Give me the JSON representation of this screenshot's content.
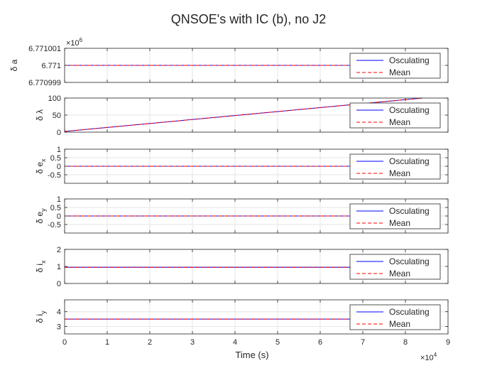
{
  "figure": {
    "title": "QNSOE's with IC (b), no J2",
    "xlabel": "Time (s)",
    "x_exponent": "10",
    "x_exponent_power": "4"
  },
  "colors": {
    "osculating": "#0000ff",
    "mean": "#ff0000",
    "axes": "#262626",
    "grid": "#e6e6e6"
  },
  "legend": {
    "placement": "top-right",
    "entries": [
      "Osculating",
      "Mean"
    ]
  },
  "chart_data": [
    {
      "type": "line",
      "ylabel": "δ a",
      "exponent": "10",
      "exponent_power": "6",
      "xlim": [
        0,
        90000
      ],
      "ylim": [
        6770999,
        6771001
      ],
      "yticks": [
        6770999,
        6771000,
        6771001
      ],
      "ytick_labels": [
        "6.770999",
        "6.771",
        "6.771001"
      ],
      "xticks": [
        0,
        10000,
        20000,
        30000,
        40000,
        50000,
        60000,
        70000,
        80000,
        90000
      ],
      "grid": true,
      "series": [
        {
          "name": "Osculating",
          "x": [
            0,
            84000
          ],
          "y": [
            6771000,
            6771000
          ]
        },
        {
          "name": "Mean",
          "x": [
            0,
            84000
          ],
          "y": [
            6771000,
            6771000
          ]
        }
      ]
    },
    {
      "type": "line",
      "ylabel": "δ λ",
      "xlim": [
        0,
        90000
      ],
      "ylim": [
        0,
        100
      ],
      "yticks": [
        0,
        50,
        100
      ],
      "ytick_labels": [
        "0",
        "50",
        "100"
      ],
      "xticks": [
        0,
        10000,
        20000,
        30000,
        40000,
        50000,
        60000,
        70000,
        80000,
        90000
      ],
      "grid": true,
      "series": [
        {
          "name": "Osculating",
          "x": [
            0,
            84000
          ],
          "y": [
            2,
            100
          ]
        },
        {
          "name": "Mean",
          "x": [
            0,
            84000
          ],
          "y": [
            2,
            100
          ]
        }
      ]
    },
    {
      "type": "line",
      "ylabel": "δ e",
      "ylabel_sub": "x",
      "xlim": [
        0,
        90000
      ],
      "ylim": [
        -1,
        1
      ],
      "yticks": [
        -0.5,
        0,
        0.5,
        1
      ],
      "ytick_labels": [
        "-0.5",
        "0",
        "0.5",
        "1"
      ],
      "xticks": [
        0,
        10000,
        20000,
        30000,
        40000,
        50000,
        60000,
        70000,
        80000,
        90000
      ],
      "grid": true,
      "series": [
        {
          "name": "Osculating",
          "x": [
            0,
            84000
          ],
          "y": [
            0,
            0
          ]
        },
        {
          "name": "Mean",
          "x": [
            0,
            84000
          ],
          "y": [
            0,
            0
          ]
        }
      ]
    },
    {
      "type": "line",
      "ylabel": "δ e",
      "ylabel_sub": "y",
      "xlim": [
        0,
        90000
      ],
      "ylim": [
        -1,
        1
      ],
      "yticks": [
        -0.5,
        0,
        0.5,
        1
      ],
      "ytick_labels": [
        "-0.5",
        "0",
        "0.5",
        "1"
      ],
      "xticks": [
        0,
        10000,
        20000,
        30000,
        40000,
        50000,
        60000,
        70000,
        80000,
        90000
      ],
      "grid": true,
      "series": [
        {
          "name": "Osculating",
          "x": [
            0,
            84000
          ],
          "y": [
            0,
            0
          ]
        },
        {
          "name": "Mean",
          "x": [
            0,
            84000
          ],
          "y": [
            0,
            0
          ]
        }
      ]
    },
    {
      "type": "line",
      "ylabel": "δ i",
      "ylabel_sub": "x",
      "xlim": [
        0,
        90000
      ],
      "ylim": [
        0,
        2
      ],
      "yticks": [
        0,
        1,
        2
      ],
      "ytick_labels": [
        "0",
        "1",
        "2"
      ],
      "xticks": [
        0,
        10000,
        20000,
        30000,
        40000,
        50000,
        60000,
        70000,
        80000,
        90000
      ],
      "grid": true,
      "series": [
        {
          "name": "Osculating",
          "x": [
            0,
            84000
          ],
          "y": [
            0.95,
            0.95
          ]
        },
        {
          "name": "Mean",
          "x": [
            0,
            84000
          ],
          "y": [
            0.95,
            0.95
          ]
        }
      ]
    },
    {
      "type": "line",
      "ylabel": "δ i",
      "ylabel_sub": "y",
      "xlim": [
        0,
        90000
      ],
      "ylim": [
        2.5,
        4.8
      ],
      "yticks": [
        3,
        4
      ],
      "ytick_labels": [
        "3",
        "4"
      ],
      "xticks": [
        0,
        10000,
        20000,
        30000,
        40000,
        50000,
        60000,
        70000,
        80000,
        90000
      ],
      "xtick_labels": [
        "0",
        "1",
        "2",
        "3",
        "4",
        "5",
        "6",
        "7",
        "8",
        "9"
      ],
      "grid": true,
      "series": [
        {
          "name": "Osculating",
          "x": [
            0,
            84000
          ],
          "y": [
            3.5,
            3.5
          ]
        },
        {
          "name": "Mean",
          "x": [
            0,
            84000
          ],
          "y": [
            3.5,
            3.5
          ]
        }
      ]
    }
  ]
}
